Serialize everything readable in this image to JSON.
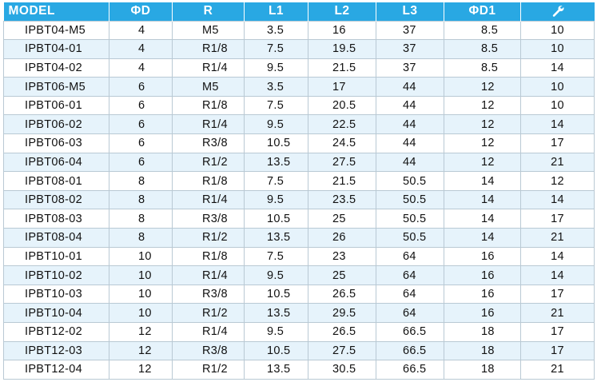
{
  "table": {
    "headers": {
      "model": "MODEL",
      "d": "ΦD",
      "r": "R",
      "l1": "L1",
      "l2": "L2",
      "l3": "L3",
      "d1": "ΦD1",
      "wrench_icon": "wrench-icon"
    },
    "colors": {
      "header_bg": "#29a8e3",
      "header_text": "#ffffff",
      "alt_row_bg": "#e6f3fb",
      "border": "#b9c9d4"
    },
    "rows": [
      [
        "IPBT04-M5",
        "4",
        "M5",
        "3.5",
        "16",
        "37",
        "8.5",
        "10"
      ],
      [
        "IPBT04-01",
        "4",
        "R1/8",
        "7.5",
        "19.5",
        "37",
        "8.5",
        "10"
      ],
      [
        "IPBT04-02",
        "4",
        "R1/4",
        "9.5",
        "21.5",
        "37",
        "8.5",
        "14"
      ],
      [
        "IPBT06-M5",
        "6",
        "M5",
        "3.5",
        "17",
        "44",
        "12",
        "10"
      ],
      [
        "IPBT06-01",
        "6",
        "R1/8",
        "7.5",
        "20.5",
        "44",
        "12",
        "10"
      ],
      [
        "IPBT06-02",
        "6",
        "R1/4",
        "9.5",
        "22.5",
        "44",
        "12",
        "14"
      ],
      [
        "IPBT06-03",
        "6",
        "R3/8",
        "10.5",
        "24.5",
        "44",
        "12",
        "17"
      ],
      [
        "IPBT06-04",
        "6",
        "R1/2",
        "13.5",
        "27.5",
        "44",
        "12",
        "21"
      ],
      [
        "IPBT08-01",
        "8",
        "R1/8",
        "7.5",
        "21.5",
        "50.5",
        "14",
        "12"
      ],
      [
        "IPBT08-02",
        "8",
        "R1/4",
        "9.5",
        "23.5",
        "50.5",
        "14",
        "14"
      ],
      [
        "IPBT08-03",
        "8",
        "R3/8",
        "10.5",
        "25",
        "50.5",
        "14",
        "17"
      ],
      [
        "IPBT08-04",
        "8",
        "R1/2",
        "13.5",
        "26",
        "50.5",
        "14",
        "21"
      ],
      [
        "IPBT10-01",
        "10",
        "R1/8",
        "7.5",
        "23",
        "64",
        "16",
        "14"
      ],
      [
        "IPBT10-02",
        "10",
        "R1/4",
        "9.5",
        "25",
        "64",
        "16",
        "14"
      ],
      [
        "IPBT10-03",
        "10",
        "R3/8",
        "10.5",
        "26.5",
        "64",
        "16",
        "17"
      ],
      [
        "IPBT10-04",
        "10",
        "R1/2",
        "13.5",
        "29.5",
        "64",
        "16",
        "21"
      ],
      [
        "IPBT12-02",
        "12",
        "R1/4",
        "9.5",
        "26.5",
        "66.5",
        "18",
        "17"
      ],
      [
        "IPBT12-03",
        "12",
        "R3/8",
        "10.5",
        "27.5",
        "66.5",
        "18",
        "17"
      ],
      [
        "IPBT12-04",
        "12",
        "R1/2",
        "13.5",
        "30.5",
        "66.5",
        "18",
        "21"
      ]
    ]
  }
}
